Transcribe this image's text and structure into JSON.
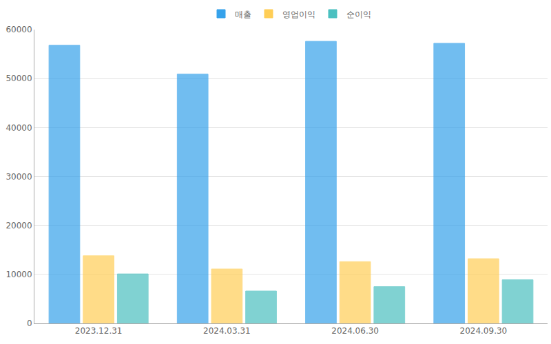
{
  "chart_data": {
    "type": "bar",
    "categories": [
      "2023.12.31",
      "2024.03.31",
      "2024.06.30",
      "2024.09.30"
    ],
    "series": [
      {
        "name": "매출",
        "color": "#36a2eb",
        "values": [
          56800,
          50900,
          57600,
          57200
        ]
      },
      {
        "name": "영업이익",
        "color": "#ffce56",
        "values": [
          13800,
          11100,
          12600,
          13200
        ]
      },
      {
        "name": "순이익",
        "color": "#4bc0c0",
        "values": [
          10100,
          6600,
          7500,
          8900
        ]
      }
    ],
    "ylim": [
      0,
      60000
    ],
    "yticks": [
      0,
      10000,
      20000,
      30000,
      40000,
      50000,
      60000
    ],
    "grid": true,
    "legend": "top"
  }
}
